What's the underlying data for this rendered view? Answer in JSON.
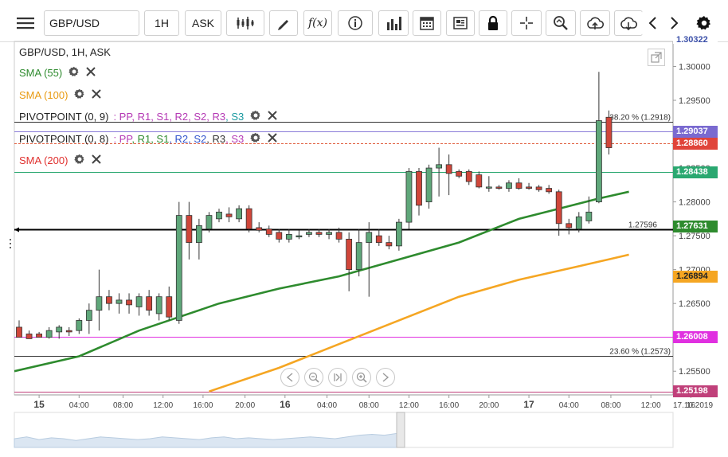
{
  "toolbar": {
    "menu_icon": "hamburger-icon",
    "symbol": "GBP/USD",
    "timeframe": "1H",
    "price_side": "ASK",
    "tools": [
      "candles-icon",
      "draw-icon",
      "function-icon",
      "info-icon",
      "volume-bars-icon",
      "calendar-icon",
      "news-icon",
      "lock-icon",
      "crosshair-icon",
      "zoom-icon",
      "upload-icon",
      "download-icon",
      "arrow-left-icon",
      "arrow-right-icon",
      "gear-icon"
    ],
    "function_label": "f(x)"
  },
  "legend": {
    "title": "GBP/USD, 1H, ASK",
    "items": [
      {
        "label": "SMA (55)",
        "color": "#2e8b2e"
      },
      {
        "label": "SMA (100)",
        "color": "#f5a623"
      },
      {
        "label": "PIVOTPOINT (0, 9)",
        "color": "#222222",
        "levels": [
          "PP",
          "R1",
          "S1",
          "R2",
          "S2",
          "R3",
          "S3"
        ],
        "level_colors": [
          "#b53ab5",
          "#b53ab5",
          "#b53ab5",
          "#b53ab5",
          "#b53ab5",
          "#b53ab5",
          "#1a9aa0"
        ]
      },
      {
        "label": "PIVOTPOINT (0, 8)",
        "color": "#222222",
        "levels": [
          "PP",
          "R1",
          "S1",
          "R2",
          "S2",
          "R3",
          "S3"
        ],
        "level_colors": [
          "#b53ab5",
          "#2e8b2e",
          "#2e8b2e",
          "#3355cc",
          "#3355cc",
          "#333333",
          "#b53ab5"
        ]
      },
      {
        "label": "SMA (200)",
        "color": "#e0302e"
      }
    ]
  },
  "chart_data": {
    "type": "candlestick",
    "symbol": "GBP/USD",
    "ylim": [
      1.2515,
      1.3037
    ],
    "yticks": [
      1.255,
      1.26,
      1.265,
      1.27,
      1.275,
      1.28,
      1.285,
      1.29,
      1.295,
      1.3
    ],
    "ytick_labels": [
      "1.25500",
      "1.26000",
      "1.26500",
      "1.27000",
      "1.27500",
      "1.28000",
      "1.28500",
      "1.29000",
      "1.29500",
      "1.30000"
    ],
    "x_labels": [
      {
        "label": "15",
        "bold": true,
        "i": 1.0
      },
      {
        "label": "04:00",
        "i": 3.0
      },
      {
        "label": "08:00",
        "i": 5.2
      },
      {
        "label": "12:00",
        "i": 7.2
      },
      {
        "label": "16:00",
        "i": 9.2
      },
      {
        "label": "20:00",
        "i": 11.3
      },
      {
        "label": "16",
        "bold": true,
        "i": 13.3
      },
      {
        "label": "04:00",
        "i": 15.4
      },
      {
        "label": "08:00",
        "i": 17.5
      },
      {
        "label": "12:00",
        "i": 19.5
      },
      {
        "label": "16:00",
        "i": 21.5
      },
      {
        "label": "20:00",
        "i": 23.5
      },
      {
        "label": "17",
        "bold": true,
        "i": 25.5
      },
      {
        "label": "04:00",
        "i": 27.5
      },
      {
        "label": "08:00",
        "i": 29.6
      },
      {
        "label": "12:00",
        "i": 31.6
      },
      {
        "label": "16",
        "i": 33.6
      },
      {
        "label": "17.10.2019",
        "i": 34.5
      }
    ],
    "candles": [
      [
        1.2615,
        1.2625,
        1.2605,
        1.26
      ],
      [
        1.2605,
        1.261,
        1.26,
        1.2598
      ],
      [
        1.2605,
        1.2608,
        1.2602,
        1.26
      ],
      [
        1.26,
        1.2615,
        1.2598,
        1.261
      ],
      [
        1.2608,
        1.2618,
        1.2598,
        1.2615
      ],
      [
        1.261,
        1.2615,
        1.2602,
        1.2608
      ],
      [
        1.261,
        1.2628,
        1.2605,
        1.2625
      ],
      [
        1.2625,
        1.265,
        1.2605,
        1.264
      ],
      [
        1.264,
        1.27,
        1.261,
        1.266
      ],
      [
        1.266,
        1.267,
        1.264,
        1.265
      ],
      [
        1.265,
        1.2665,
        1.2635,
        1.2655
      ],
      [
        1.2655,
        1.2665,
        1.2635,
        1.2648
      ],
      [
        1.2645,
        1.2665,
        1.2632,
        1.266
      ],
      [
        1.266,
        1.267,
        1.2632,
        1.264
      ],
      [
        1.2635,
        1.2665,
        1.2625,
        1.266
      ],
      [
        1.266,
        1.2675,
        1.2625,
        1.263
      ],
      [
        1.2625,
        1.28,
        1.262,
        1.278
      ],
      [
        1.278,
        1.28,
        1.2715,
        1.274
      ],
      [
        1.274,
        1.2775,
        1.2715,
        1.2765
      ],
      [
        1.276,
        1.2785,
        1.2755,
        1.278
      ],
      [
        1.2775,
        1.279,
        1.277,
        1.2785
      ],
      [
        1.2782,
        1.2792,
        1.277,
        1.2778
      ],
      [
        1.2775,
        1.2795,
        1.277,
        1.279
      ],
      [
        1.279,
        1.2795,
        1.2755,
        1.276
      ],
      [
        1.2762,
        1.277,
        1.2755,
        1.2758
      ],
      [
        1.276,
        1.2765,
        1.2748,
        1.2752
      ],
      [
        1.2755,
        1.276,
        1.274,
        1.2745
      ],
      [
        1.2745,
        1.276,
        1.274,
        1.2752
      ],
      [
        1.275,
        1.2758,
        1.2745,
        1.275
      ],
      [
        1.2752,
        1.276,
        1.2748,
        1.2755
      ],
      [
        1.2755,
        1.276,
        1.2748,
        1.2752
      ],
      [
        1.2752,
        1.276,
        1.2745,
        1.2755
      ],
      [
        1.2755,
        1.2762,
        1.274,
        1.2745
      ],
      [
        1.2745,
        1.2755,
        1.2668,
        1.27
      ],
      [
        1.27,
        1.276,
        1.269,
        1.274
      ],
      [
        1.274,
        1.277,
        1.266,
        1.2755
      ],
      [
        1.275,
        1.276,
        1.2735,
        1.274
      ],
      [
        1.274,
        1.275,
        1.273,
        1.2735
      ],
      [
        1.2735,
        1.2775,
        1.2728,
        1.277
      ],
      [
        1.277,
        1.285,
        1.276,
        1.2845
      ],
      [
        1.2845,
        1.285,
        1.278,
        1.2795
      ],
      [
        1.28,
        1.2855,
        1.279,
        1.285
      ],
      [
        1.285,
        1.288,
        1.2808,
        1.2855
      ],
      [
        1.2855,
        1.287,
        1.281,
        1.2842
      ],
      [
        1.2845,
        1.2848,
        1.2835,
        1.2838
      ],
      [
        1.2845,
        1.2848,
        1.2825,
        1.283
      ],
      [
        1.284,
        1.2845,
        1.282,
        1.2822
      ],
      [
        1.2822,
        1.2838,
        1.2815,
        1.2822
      ],
      [
        1.2822,
        1.2825,
        1.2818,
        1.282
      ],
      [
        1.282,
        1.2832,
        1.2815,
        1.2828
      ],
      [
        1.2828,
        1.2835,
        1.2818,
        1.282
      ],
      [
        1.2822,
        1.2828,
        1.2818,
        1.282
      ],
      [
        1.2822,
        1.2825,
        1.2815,
        1.2818
      ],
      [
        1.282,
        1.2825,
        1.2812,
        1.2815
      ],
      [
        1.2815,
        1.2818,
        1.275,
        1.2768
      ],
      [
        1.2768,
        1.2775,
        1.2752,
        1.2762
      ],
      [
        1.276,
        1.2785,
        1.2755,
        1.2778
      ],
      [
        1.2772,
        1.2808,
        1.2768,
        1.2785
      ],
      [
        1.28,
        1.2992,
        1.2798,
        1.292
      ],
      [
        1.2925,
        1.2935,
        1.287,
        1.288
      ]
    ],
    "sma55": [
      [
        0,
        1.255
      ],
      [
        6,
        1.2572
      ],
      [
        12,
        1.261
      ],
      [
        16,
        1.263
      ],
      [
        20,
        1.265
      ],
      [
        26,
        1.2672
      ],
      [
        32,
        1.269
      ],
      [
        38,
        1.2715
      ],
      [
        44,
        1.274
      ],
      [
        50,
        1.2775
      ],
      [
        54,
        1.279
      ],
      [
        58,
        1.2805
      ],
      [
        61,
        1.2815
      ]
    ],
    "sma100": [
      [
        19,
        1.252
      ],
      [
        26,
        1.2555
      ],
      [
        32,
        1.259
      ],
      [
        38,
        1.2625
      ],
      [
        44,
        1.266
      ],
      [
        50,
        1.2685
      ],
      [
        56,
        1.2705
      ],
      [
        61,
        1.2722
      ]
    ],
    "hlines": [
      {
        "y": 1.2918,
        "color": "#333333",
        "label": "38.20 % (1.2918)"
      },
      {
        "y": 1.29037,
        "color": "#8a7cd8"
      },
      {
        "y": 1.2886,
        "color": "#e05a3a",
        "dashed": true
      },
      {
        "y": 1.28438,
        "color": "#2aa870"
      },
      {
        "y": 1.27596,
        "color": "#000000",
        "label": "1.27596",
        "thick": true
      },
      {
        "y": 1.26008,
        "color": "#e030e0"
      },
      {
        "y": 1.2573,
        "color": "#333333",
        "label": "23.60 % (1.2573)"
      },
      {
        "y": 1.25198,
        "color": "#c0407a"
      }
    ],
    "price_tags": [
      {
        "value": "1.30322",
        "y": 1.3037,
        "bg": "#3a4fa8"
      },
      {
        "value": "1.29037",
        "y": 1.29037,
        "bg": "#7a6ad0"
      },
      {
        "value": "1.28860",
        "y": 1.2886,
        "bg": "#e0443a"
      },
      {
        "value": "1.28438",
        "y": 1.28438,
        "bg": "#2aa870"
      },
      {
        "value": "1.27631",
        "y": 1.27631,
        "bg": "#2e8b2e"
      },
      {
        "value": "1.26894",
        "y": 1.26894,
        "bg": "#f5a623",
        "fg": "#222222"
      },
      {
        "value": "1.26008",
        "y": 1.26008,
        "bg": "#e030e0"
      },
      {
        "value": "1.25198",
        "y": 1.25198,
        "bg": "#c0407a"
      }
    ]
  },
  "navigator": {
    "buttons": [
      "scroll-left-icon",
      "zoom-out-icon",
      "reset-icon",
      "zoom-in-icon",
      "scroll-right-icon"
    ]
  }
}
